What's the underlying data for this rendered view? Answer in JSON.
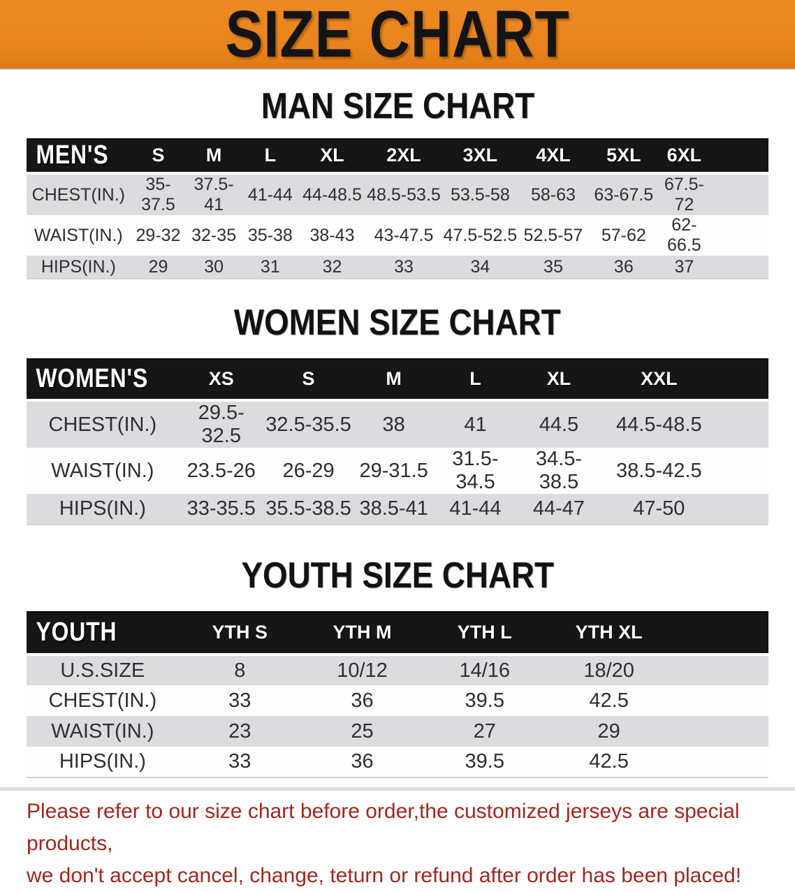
{
  "banner": {
    "title": "SIZE CHART"
  },
  "colors": {
    "banner_bg": "#E8831E",
    "table_header_bg": "#161616",
    "row_stripe": "#DCDCDE",
    "disclaimer_text": "#A4261E"
  },
  "men": {
    "heading": "MAN SIZE CHART",
    "table": {
      "title": "MEN'S",
      "columns": [
        "S",
        "M",
        "L",
        "XL",
        "2XL",
        "3XL",
        "4XL",
        "5XL",
        "6XL"
      ],
      "rows": [
        {
          "label": "CHEST(IN.)",
          "values": [
            "35-37.5",
            "37.5-41",
            "41-44",
            "44-48.5",
            "48.5-53.5",
            "53.5-58",
            "58-63",
            "63-67.5",
            "67.5-72"
          ]
        },
        {
          "label": "WAIST(IN.)",
          "values": [
            "29-32",
            "32-35",
            "35-38",
            "38-43",
            "43-47.5",
            "47.5-52.5",
            "52.5-57",
            "57-62",
            "62-66.5"
          ]
        },
        {
          "label": "HIPS(IN.)",
          "values": [
            "29",
            "30",
            "31",
            "32",
            "33",
            "34",
            "35",
            "36",
            "37"
          ]
        }
      ]
    }
  },
  "women": {
    "heading": "WOMEN SIZE CHART",
    "table": {
      "title": "WOMEN'S",
      "columns": [
        "XS",
        "S",
        "M",
        "L",
        "XL",
        "XXL"
      ],
      "rows": [
        {
          "label": "CHEST(IN.)",
          "values": [
            "29.5-32.5",
            "32.5-35.5",
            "38",
            "41",
            "44.5",
            "44.5-48.5"
          ]
        },
        {
          "label": "WAIST(IN.)",
          "values": [
            "23.5-26",
            "26-29",
            "29-31.5",
            "31.5-34.5",
            "34.5-38.5",
            "38.5-42.5"
          ]
        },
        {
          "label": "HIPS(IN.)",
          "values": [
            "33-35.5",
            "35.5-38.5",
            "38.5-41",
            "41-44",
            "44-47",
            "47-50"
          ]
        }
      ]
    }
  },
  "youth": {
    "heading": "YOUTH SIZE CHART",
    "table": {
      "title": "YOUTH",
      "columns": [
        "YTH S",
        "YTH M",
        "YTH L",
        "YTH XL"
      ],
      "rows": [
        {
          "label": "U.S.SIZE",
          "values": [
            "8",
            "10/12",
            "14/16",
            "18/20"
          ]
        },
        {
          "label": "CHEST(IN.)",
          "values": [
            "33",
            "36",
            "39.5",
            "42.5"
          ]
        },
        {
          "label": "WAIST(IN.)",
          "values": [
            "23",
            "25",
            "27",
            "29"
          ]
        },
        {
          "label": "HIPS(IN.)",
          "values": [
            "33",
            "36",
            "39.5",
            "42.5"
          ]
        }
      ]
    }
  },
  "disclaimer": {
    "line1": "Please refer to our size chart before order,the customized jerseys are special products,",
    "line2": "we don't accept cancel, change, teturn or refund after order has been placed!"
  }
}
